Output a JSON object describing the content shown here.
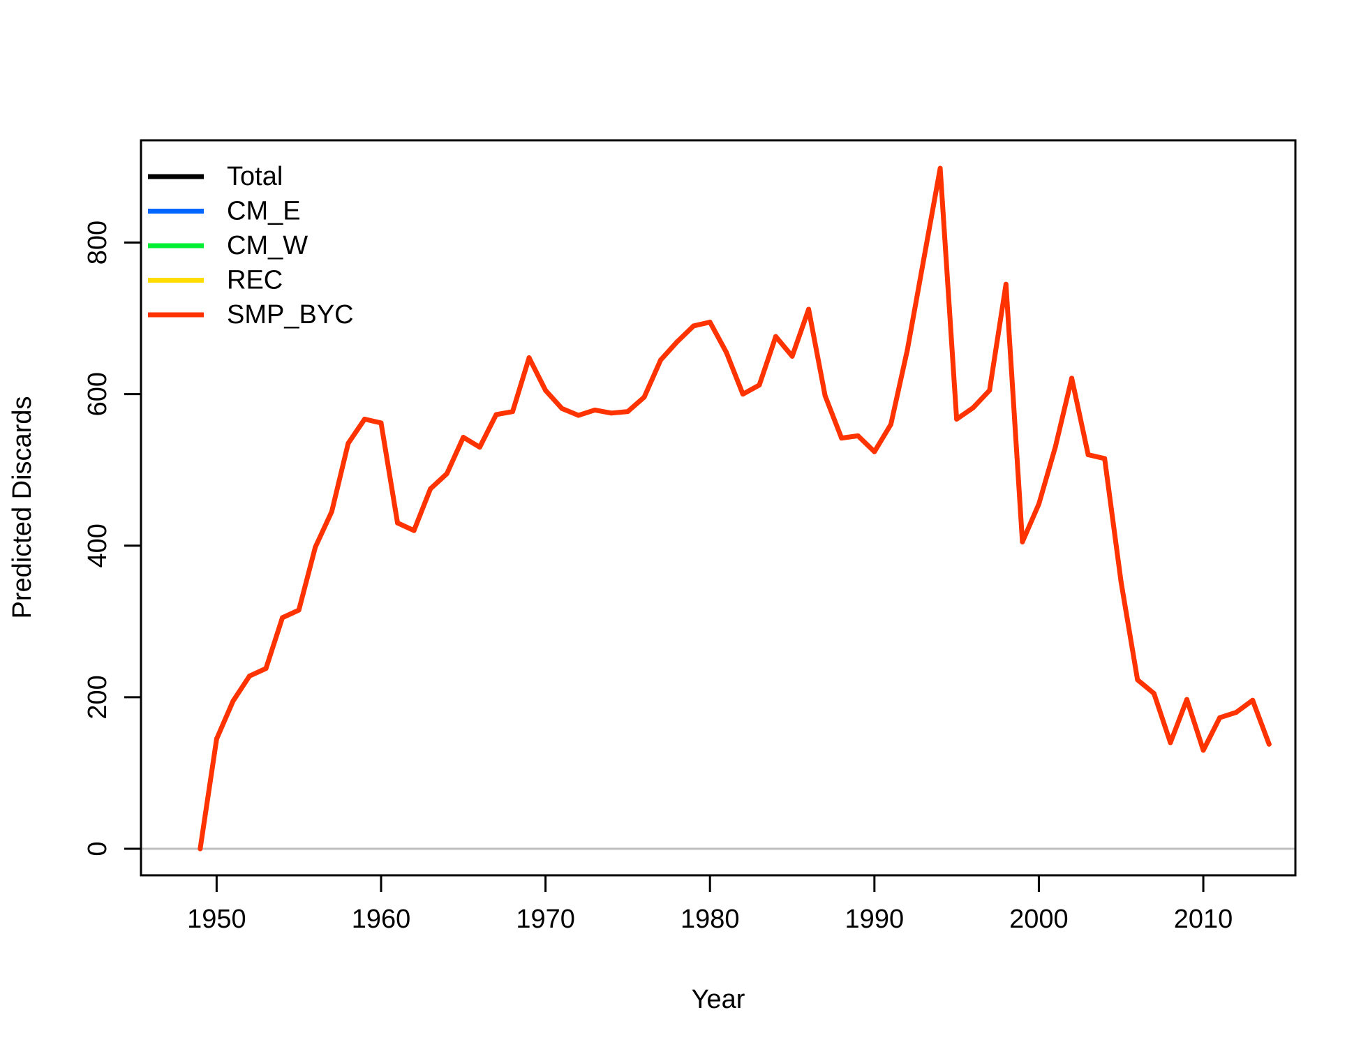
{
  "chart_data": {
    "type": "line",
    "title": "",
    "xlabel": "Year",
    "ylabel": "Predicted Discards",
    "xlim": [
      1945.4,
      2015.6
    ],
    "ylim": [
      -35,
      935
    ],
    "x_ticks": [
      1950,
      1960,
      1970,
      1980,
      1990,
      2000,
      2010
    ],
    "y_ticks": [
      0,
      200,
      400,
      600,
      800
    ],
    "x_tick_labels": [
      "1950",
      "1960",
      "1970",
      "1980",
      "1990",
      "2000",
      "2010"
    ],
    "y_tick_labels": [
      "0",
      "200",
      "400",
      "600",
      "800"
    ],
    "reference_line": {
      "y": 0,
      "color": "#bebebe"
    },
    "grid": false,
    "legend": {
      "position": "top-left",
      "entries": [
        {
          "name": "Total",
          "color": "#000000"
        },
        {
          "name": "CM_E",
          "color": "#0066ff"
        },
        {
          "name": "CM_W",
          "color": "#00ee33"
        },
        {
          "name": "REC",
          "color": "#ffdd00"
        },
        {
          "name": "SMP_BYC",
          "color": "#ff3300"
        }
      ]
    },
    "x": [
      1949,
      1950,
      1951,
      1952,
      1953,
      1954,
      1955,
      1956,
      1957,
      1958,
      1959,
      1960,
      1961,
      1962,
      1963,
      1964,
      1965,
      1966,
      1967,
      1968,
      1969,
      1970,
      1971,
      1972,
      1973,
      1974,
      1975,
      1976,
      1977,
      1978,
      1979,
      1980,
      1981,
      1982,
      1983,
      1984,
      1985,
      1986,
      1987,
      1988,
      1989,
      1990,
      1991,
      1992,
      1993,
      1994,
      1995,
      1996,
      1997,
      1998,
      1999,
      2000,
      2001,
      2002,
      2003,
      2004,
      2005,
      2006,
      2007,
      2008,
      2009,
      2010,
      2011,
      2012,
      2013,
      2014
    ],
    "series": [
      {
        "name": "SMP_BYC",
        "color": "#ff3300",
        "values": [
          0,
          145,
          195,
          228,
          238,
          305,
          315,
          398,
          445,
          535,
          567,
          562,
          430,
          420,
          475,
          495,
          543,
          530,
          573,
          577,
          648,
          605,
          581,
          572,
          579,
          575,
          577,
          596,
          645,
          669,
          690,
          695,
          655,
          600,
          612,
          676,
          650,
          712,
          598,
          542,
          545,
          524,
          560,
          658,
          778,
          898,
          567,
          582,
          605,
          745,
          405,
          455,
          530,
          621,
          520,
          515,
          352,
          223,
          205,
          140,
          197,
          130,
          173,
          180,
          196,
          138
        ]
      }
    ]
  }
}
